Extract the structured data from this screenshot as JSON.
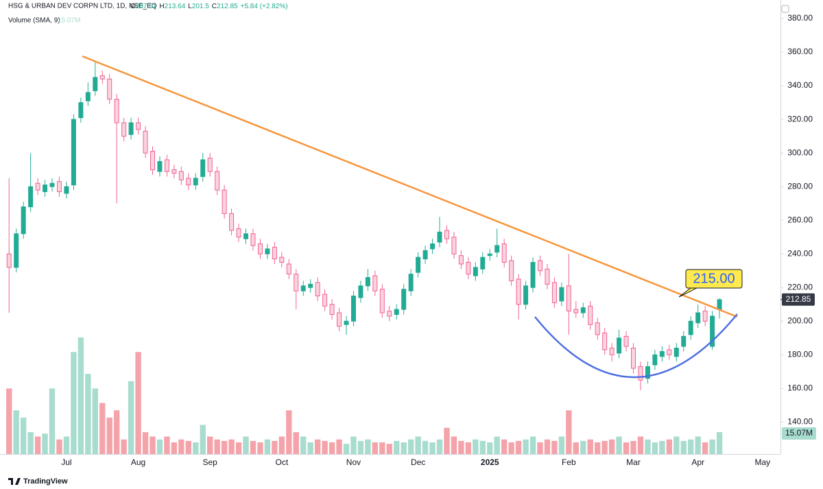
{
  "chart_data": {
    "type": "candlestick",
    "header": {
      "symbol": "HSG & URBAN DEV CORPN LTD, 1D, NSE_EQ",
      "items": [
        {
          "label": "O",
          "value": 207.01
        },
        {
          "label": "H",
          "value": 213.64
        },
        {
          "label": "L",
          "value": 201.5
        },
        {
          "label": "C",
          "value": 212.85
        }
      ],
      "change": "+5.84 (+2.82%)",
      "volume_label": "Volume (SMA, 9)",
      "volume_value": "15.07M"
    },
    "annotation": "215.00",
    "last_price": {
      "value": 212.85,
      "label": "212.85"
    },
    "last_volume": "15.07M",
    "brand": "TradingView",
    "up_color": "#22ab94",
    "down_color": "#f06292",
    "ylim": [
      121,
      391
    ],
    "yticks": [
      {
        "value": 140,
        "label": "140.00"
      },
      {
        "value": 160,
        "label": "160.00"
      },
      {
        "value": 180,
        "label": "180.00"
      },
      {
        "value": 200,
        "label": "200.00"
      },
      {
        "value": 220,
        "label": "220.00"
      },
      {
        "value": 240,
        "label": "240.00"
      },
      {
        "value": 260,
        "label": "260.00"
      },
      {
        "value": 280,
        "label": "280.00"
      },
      {
        "value": 300,
        "label": "300.00"
      },
      {
        "value": 320,
        "label": "320.00"
      },
      {
        "value": 340,
        "label": "340.00"
      },
      {
        "value": 360,
        "label": "360.00"
      },
      {
        "value": 380,
        "label": "380.00"
      }
    ],
    "categories": [
      null,
      null,
      null,
      null,
      null,
      null,
      null,
      null,
      "Jul",
      null,
      null,
      null,
      null,
      null,
      null,
      null,
      null,
      null,
      "Aug",
      null,
      null,
      null,
      null,
      null,
      null,
      null,
      null,
      null,
      "Sep",
      null,
      null,
      null,
      null,
      null,
      null,
      null,
      null,
      null,
      "Oct",
      null,
      null,
      null,
      null,
      null,
      null,
      null,
      null,
      null,
      "Nov",
      null,
      null,
      null,
      null,
      null,
      null,
      null,
      null,
      "Dec",
      null,
      null,
      null,
      null,
      null,
      null,
      null,
      null,
      null,
      "2025",
      null,
      null,
      null,
      null,
      null,
      null,
      null,
      null,
      null,
      null,
      "Feb",
      null,
      null,
      null,
      null,
      null,
      null,
      null,
      null,
      "Mar",
      null,
      null,
      null,
      null,
      null,
      null,
      null,
      null,
      "Apr",
      null,
      null,
      null,
      null,
      null,
      null,
      null,
      null,
      "May",
      null,
      null
    ],
    "open": [
      240,
      232,
      252,
      268,
      282,
      277,
      280,
      283,
      276,
      281,
      321,
      331,
      337,
      346,
      344,
      332,
      318,
      311,
      318,
      313,
      301,
      289,
      296,
      290,
      289,
      285,
      281,
      286,
      297,
      289,
      278,
      264,
      255,
      249,
      252,
      246,
      240,
      244,
      238,
      234,
      228,
      218,
      220,
      223,
      216,
      210,
      205,
      198,
      200,
      214,
      221,
      227,
      219,
      206,
      204,
      207,
      218,
      229,
      237,
      243,
      247,
      254,
      250,
      239,
      235,
      227,
      231,
      239,
      241,
      246,
      236,
      225,
      210,
      220,
      236,
      231,
      223,
      212,
      221,
      207,
      205,
      209,
      199,
      193,
      184,
      181,
      191,
      184,
      173,
      166,
      174,
      179,
      183,
      179,
      185,
      192,
      199,
      206,
      185,
      207.01,
      null,
      null,
      null,
      null,
      null,
      null,
      null,
      null
    ],
    "high": [
      285,
      255,
      271,
      300,
      285,
      284,
      285,
      286,
      283,
      323,
      333,
      342,
      355,
      349,
      347,
      335,
      321,
      321,
      321,
      316,
      304,
      298,
      299,
      293,
      292,
      288,
      288,
      300,
      300,
      292,
      281,
      267,
      258,
      255,
      255,
      249,
      246,
      247,
      241,
      237,
      231,
      224,
      225,
      226,
      219,
      213,
      208,
      203,
      218,
      224,
      231,
      230,
      222,
      209,
      210,
      222,
      231,
      241,
      245,
      249,
      262,
      257,
      253,
      242,
      238,
      235,
      241,
      243,
      255,
      249,
      239,
      228,
      224,
      238,
      239,
      234,
      226,
      223,
      240,
      212,
      211,
      212,
      202,
      196,
      187,
      195,
      194,
      187,
      176,
      176,
      183,
      185,
      186,
      187,
      194,
      203,
      210,
      209,
      206,
      213.64,
      null,
      null,
      null,
      null,
      null,
      null,
      null,
      null
    ],
    "low": [
      205,
      229,
      249,
      265,
      275,
      274,
      277,
      274,
      273,
      278,
      318,
      328,
      334,
      341,
      329,
      270,
      307,
      308,
      311,
      297,
      287,
      286,
      286,
      285,
      281,
      278,
      278,
      283,
      286,
      275,
      261,
      251,
      247,
      246,
      242,
      237,
      237,
      234,
      232,
      225,
      207,
      215,
      217,
      212,
      206,
      201,
      194,
      192,
      197,
      211,
      218,
      215,
      202,
      200,
      201,
      204,
      215,
      226,
      234,
      240,
      244,
      246,
      237,
      231,
      225,
      224,
      228,
      236,
      238,
      232,
      221,
      201,
      207,
      217,
      227,
      219,
      208,
      209,
      192,
      202,
      202,
      195,
      189,
      180,
      176,
      178,
      182,
      169,
      159,
      163,
      171,
      176,
      177,
      176,
      182,
      189,
      196,
      197,
      183,
      201.5,
      null,
      null,
      null,
      null,
      null,
      null,
      null,
      null
    ],
    "close": [
      232,
      252,
      268,
      280,
      278,
      281,
      282,
      277,
      280,
      320,
      330,
      336,
      345,
      344,
      332,
      318,
      310,
      318,
      314,
      300,
      290,
      295,
      289,
      288,
      284,
      281,
      285,
      296,
      289,
      278,
      264,
      254,
      250,
      252,
      245,
      240,
      243,
      237,
      235,
      228,
      218,
      221,
      222,
      215,
      209,
      204,
      197,
      200,
      215,
      221,
      226,
      218,
      205,
      203,
      207,
      219,
      228,
      238,
      242,
      246,
      253,
      249,
      240,
      234,
      228,
      232,
      238,
      240,
      245,
      235,
      224,
      210,
      221,
      235,
      230,
      222,
      211,
      220,
      206,
      205,
      208,
      198,
      192,
      183,
      180,
      190,
      185,
      172,
      165,
      173,
      180,
      182,
      180,
      184,
      191,
      200,
      205,
      200,
      203,
      212.85,
      null,
      null,
      null,
      null,
      null,
      null,
      null,
      null
    ],
    "volume": [
      45,
      30,
      25,
      15,
      12,
      14,
      45,
      10,
      12,
      70,
      80,
      55,
      45,
      35,
      25,
      30,
      10,
      50,
      70,
      15,
      12,
      10,
      12,
      8,
      10,
      9,
      8,
      20,
      12,
      10,
      9,
      10,
      8,
      12,
      9,
      8,
      10,
      9,
      12,
      30,
      15,
      12,
      8,
      10,
      9,
      8,
      10,
      7,
      12,
      9,
      10,
      8,
      8,
      7,
      9,
      8,
      10,
      12,
      9,
      8,
      10,
      18,
      12,
      9,
      8,
      10,
      9,
      8,
      12,
      10,
      8,
      9,
      10,
      12,
      8,
      10,
      9,
      12,
      30,
      8,
      9,
      10,
      8,
      9,
      10,
      12,
      8,
      9,
      12,
      10,
      8,
      9,
      10,
      12,
      9,
      10,
      12,
      8,
      10,
      15.07,
      null,
      null,
      null,
      null,
      null,
      null,
      null,
      null
    ]
  }
}
